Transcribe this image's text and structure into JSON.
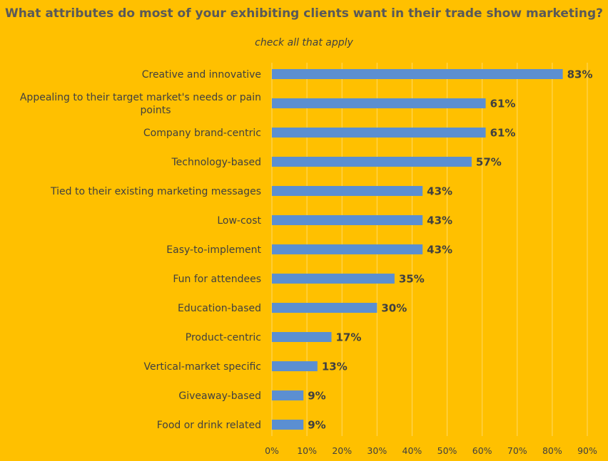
{
  "chart_data": {
    "type": "bar",
    "orientation": "horizontal",
    "title": "What attributes do most of your exhibiting clients want in their trade show marketing?",
    "subtitle": "check all that apply",
    "categories": [
      "Creative and innovative",
      "Appealing to their target market's needs or pain points",
      "Company brand-centric",
      "Technology-based",
      "Tied to their existing marketing messages",
      "Low-cost",
      "Easy-to-implement",
      "Fun for attendees",
      "Education-based",
      "Product-centric",
      "Vertical-market specific",
      "Giveaway-based",
      "Food or drink related"
    ],
    "values": [
      83,
      61,
      61,
      57,
      43,
      43,
      43,
      35,
      30,
      17,
      13,
      9,
      9
    ],
    "data_labels": [
      "83%",
      "61%",
      "61%",
      "57%",
      "43%",
      "43%",
      "43%",
      "35%",
      "30%",
      "17%",
      "13%",
      "9%",
      "9%"
    ],
    "xlim": [
      0,
      90
    ],
    "xticks": [
      0,
      10,
      20,
      30,
      40,
      50,
      60,
      70,
      80,
      90
    ],
    "xtick_labels": [
      "0%",
      "10%",
      "20%",
      "30%",
      "40%",
      "50%",
      "60%",
      "70%",
      "80%",
      "90%"
    ],
    "grid": "vertical",
    "colors": {
      "background": "#FFC000",
      "bar": "#5B8FD1",
      "text": "#404040",
      "gridline": "#FFD966"
    }
  }
}
